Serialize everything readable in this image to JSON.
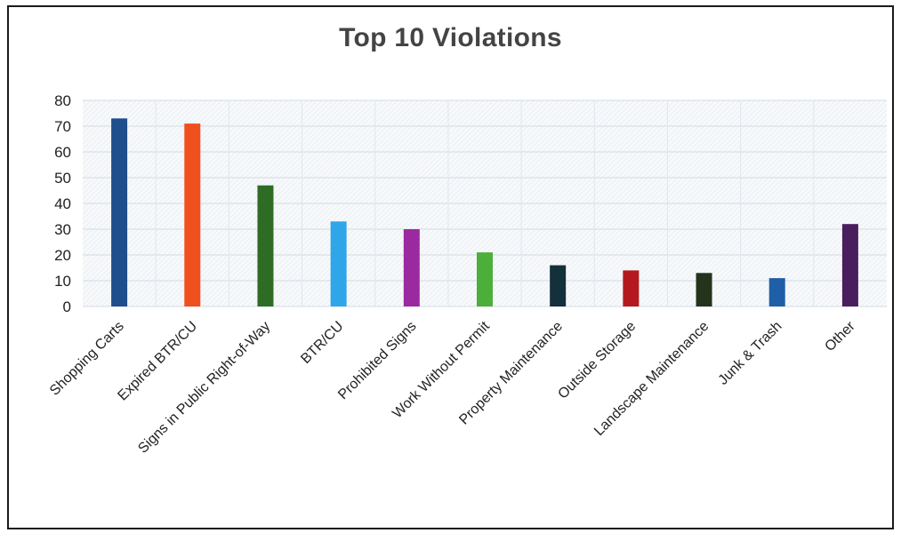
{
  "chart_data": {
    "type": "bar",
    "title": "Top 10 Violations",
    "xlabel": "",
    "ylabel": "",
    "ylim": [
      0,
      80
    ],
    "yticks": [
      0,
      10,
      20,
      30,
      40,
      50,
      60,
      70,
      80
    ],
    "grid": true,
    "legend": "none",
    "categories": [
      "Shopping Carts",
      "Expired BTR/CU",
      "Signs in Public Right-of-Way",
      "BTR/CU",
      "Prohibited Signs",
      "Work Without Permit",
      "Property Maintenance",
      "Outside Storage",
      "Landscape Maintenance",
      "Junk & Trash",
      "Other"
    ],
    "values": [
      73,
      71,
      47,
      33,
      30,
      21,
      16,
      14,
      13,
      11,
      32
    ],
    "colors": [
      "#1f4e8c",
      "#f0501e",
      "#2e6b24",
      "#2fa6e8",
      "#9b2aa0",
      "#4caf3a",
      "#14303a",
      "#b3191e",
      "#23331c",
      "#1e5fa8",
      "#4a1e5c"
    ]
  }
}
